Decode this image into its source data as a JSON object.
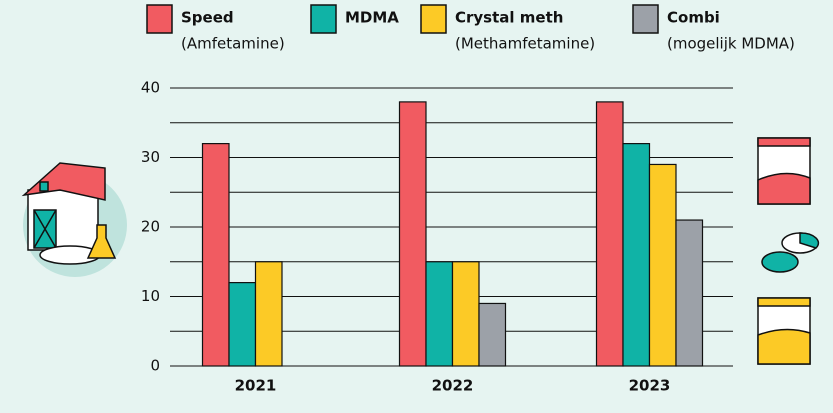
{
  "chart_data": {
    "type": "bar",
    "categories": [
      "2021",
      "2022",
      "2023"
    ],
    "series": [
      {
        "name": "Speed",
        "sublabel": "(Amfetamine)",
        "color": "#f15b61",
        "values": [
          32,
          38,
          38
        ]
      },
      {
        "name": "MDMA",
        "color": "#10b3a6",
        "values": [
          12,
          15,
          32
        ]
      },
      {
        "name": "Crystal meth",
        "sublabel": "(Methamfetamine)",
        "color": "#fcca26",
        "values": [
          15,
          15,
          29
        ]
      },
      {
        "name": "Combi",
        "sublabel": "(mogelijk MDMA)",
        "color": "#9ca1a8",
        "values": [
          null,
          9,
          21
        ]
      }
    ],
    "ylim": [
      0,
      40
    ],
    "yticks": [
      0,
      10,
      20,
      30,
      40
    ],
    "minor_yticks": [
      5,
      15,
      25,
      35
    ],
    "grid": true
  }
}
